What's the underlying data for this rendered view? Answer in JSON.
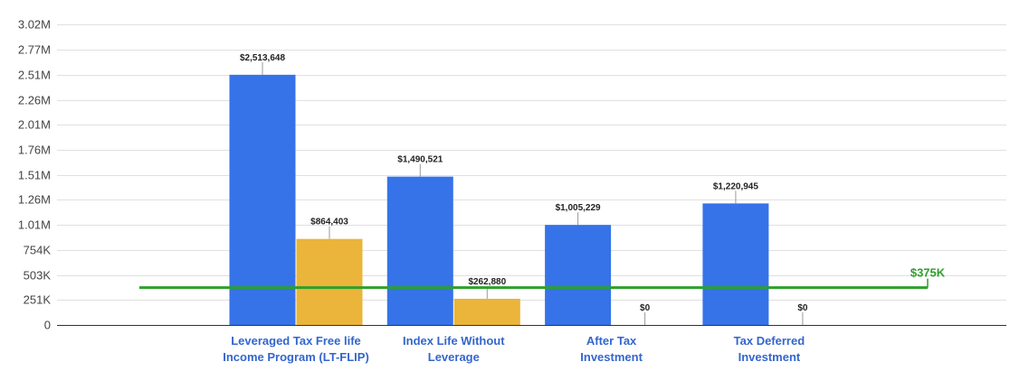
{
  "chart_data": {
    "type": "bar",
    "title": "",
    "xlabel": "",
    "ylabel": "",
    "ylim": [
      0,
      3020000
    ],
    "yticks": [
      {
        "value": 0,
        "label": "0"
      },
      {
        "value": 251000,
        "label": "251K"
      },
      {
        "value": 503000,
        "label": "503K"
      },
      {
        "value": 754000,
        "label": "754K"
      },
      {
        "value": 1010000,
        "label": "1.01M"
      },
      {
        "value": 1260000,
        "label": "1.26M"
      },
      {
        "value": 1510000,
        "label": "1.51M"
      },
      {
        "value": 1760000,
        "label": "1.76M"
      },
      {
        "value": 2010000,
        "label": "2.01M"
      },
      {
        "value": 2260000,
        "label": "2.26M"
      },
      {
        "value": 2510000,
        "label": "2.51M"
      },
      {
        "value": 2770000,
        "label": "2.77M"
      },
      {
        "value": 3020000,
        "label": "3.02M"
      }
    ],
    "grid": true,
    "legend": "none",
    "categories": [
      [
        "Leveraged Tax Free life",
        "Income Program (LT-FLIP)"
      ],
      [
        "Index Life Without",
        "Leverage"
      ],
      [
        "After Tax",
        "Investment"
      ],
      [
        "Tax Deferred",
        "Investment"
      ]
    ],
    "series": [
      {
        "color": "#3673e8",
        "values": [
          2513648,
          1490521,
          1005229,
          1220945
        ],
        "labels": [
          "$2,513,648",
          "$1,490,521",
          "$1,005,229",
          "$1,220,945"
        ]
      },
      {
        "color": "#ebb43a",
        "values": [
          864403,
          262880,
          0,
          0
        ],
        "labels": [
          "$864,403",
          "$262,880",
          "$0",
          "$0"
        ]
      }
    ],
    "reference_line": {
      "value": 375000,
      "label": "$375K",
      "color": "#2ca02c"
    }
  }
}
